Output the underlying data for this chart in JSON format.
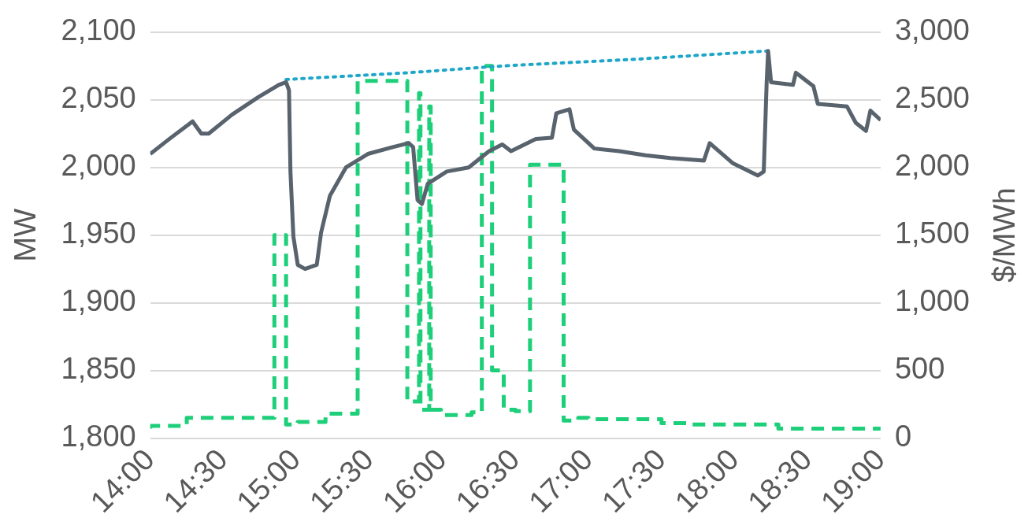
{
  "chart_data": {
    "type": "line",
    "ylabel": "MW",
    "y2label": "$/MWh",
    "grid": "y",
    "legend": false,
    "marker": "none",
    "xlim": [
      14,
      19
    ],
    "xticks": [
      {
        "value": 14,
        "label": "14:00"
      },
      {
        "value": 14.5,
        "label": "14:30"
      },
      {
        "value": 15,
        "label": "15:00"
      },
      {
        "value": 15.5,
        "label": "15:30"
      },
      {
        "value": 16,
        "label": "16:00"
      },
      {
        "value": 16.5,
        "label": "16:30"
      },
      {
        "value": 17,
        "label": "17:00"
      },
      {
        "value": 17.5,
        "label": "17:30"
      },
      {
        "value": 18,
        "label": "18:00"
      },
      {
        "value": 18.5,
        "label": "18:30"
      },
      {
        "value": 19,
        "label": "19:00"
      }
    ],
    "ylim": [
      1800,
      2100
    ],
    "yticks": [
      {
        "value": 1800,
        "label": "1,800"
      },
      {
        "value": 1850,
        "label": "1,850"
      },
      {
        "value": 1900,
        "label": "1,900"
      },
      {
        "value": 1950,
        "label": "1,950"
      },
      {
        "value": 2000,
        "label": "2,000"
      },
      {
        "value": 2050,
        "label": "2,050"
      },
      {
        "value": 2100,
        "label": "2,100"
      }
    ],
    "y2lim": [
      0,
      3000
    ],
    "y2ticks": [
      0,
      {
        "value": 500,
        "label": "500"
      },
      {
        "value": 1000,
        "label": "1,000"
      },
      {
        "value": 1500,
        "label": "1,500"
      },
      {
        "value": 2000,
        "label": "2,000"
      },
      {
        "value": 2500,
        "label": "2,500"
      },
      {
        "value": 3000,
        "label": "3,000"
      }
    ],
    "series": [
      {
        "type": "line",
        "color": "#58636d",
        "line_style": "solid",
        "x": [
          14,
          14.13,
          14.29,
          14.35,
          14.4,
          14.56,
          14.74,
          14.88,
          14.93,
          14.95,
          14.96,
          14.98,
          15.01,
          15.06,
          15.14,
          15.17,
          15.23,
          15.34,
          15.49,
          15.66,
          15.77,
          15.8,
          15.83,
          15.86,
          15.9,
          16.03,
          16.18,
          16.32,
          16.41,
          16.47,
          16.64,
          16.75,
          16.78,
          16.87,
          16.9,
          17.04,
          17.21,
          17.39,
          17.56,
          17.79,
          17.83,
          17.99,
          18.16,
          18.2,
          18.22,
          18.23,
          18.25,
          18.4,
          18.42,
          18.54,
          18.57,
          18.77,
          18.83,
          18.9,
          18.93,
          19
        ],
        "values": [
          2010,
          2021,
          2034,
          2025,
          2025,
          2039,
          2052,
          2061,
          2063,
          2057,
          1997,
          1949,
          1928,
          1925,
          1928,
          1952,
          1979,
          2000,
          2010,
          2015,
          2018,
          2015,
          1976,
          1973,
          1988,
          1997,
          2000,
          2012,
          2017,
          2012,
          2021,
          2022,
          2040,
          2043,
          2028,
          2014,
          2012,
          2009,
          2007,
          2005,
          2018,
          2003,
          1994,
          1997,
          2063,
          2086,
          2063,
          2061,
          2070,
          2060,
          2047,
          2045,
          2033,
          2027,
          2042,
          2035
        ]
      },
      {
        "type": "line",
        "color": "#1ea6c9",
        "line_style": "dotted",
        "x": [
          14.93,
          15.77,
          16.41,
          17.33,
          18.22
        ],
        "values": [
          2065,
          2070,
          2075,
          2080,
          2086
        ]
      },
      {
        "type": "step",
        "axis": "y2",
        "color": "#1ecf7a",
        "line_style": "dashed",
        "x": [
          14,
          14.25,
          14.85,
          14.93,
          15.01,
          15.2,
          15.42,
          15.76,
          15.84,
          15.85,
          15.91,
          15.92,
          15.99,
          16.2,
          16.27,
          16.34,
          16.42,
          16.5,
          16.6,
          16.83,
          16.93,
          17,
          17.5,
          17.7,
          18.3,
          18.9,
          19
        ],
        "values": [
          70,
          90,
          150,
          1500,
          100,
          120,
          180,
          2640,
          270,
          2550,
          210,
          2450,
          210,
          170,
          190,
          2750,
          500,
          210,
          200,
          2020,
          130,
          150,
          140,
          110,
          100,
          70,
          70
        ]
      }
    ]
  }
}
